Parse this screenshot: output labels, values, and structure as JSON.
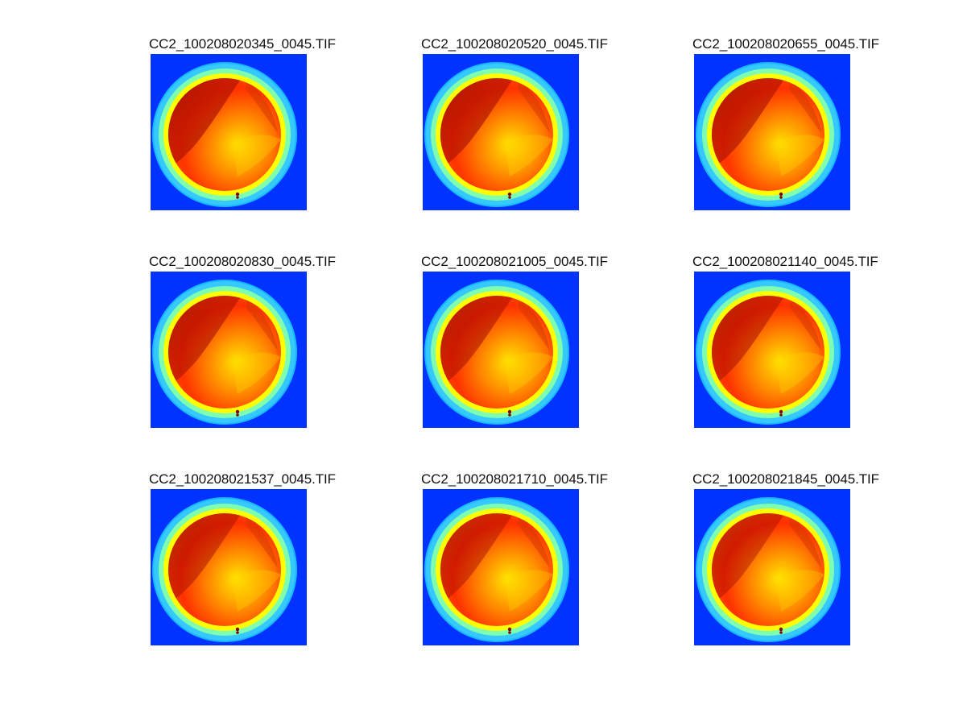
{
  "figure": {
    "panels": [
      {
        "title": "CC2_100208020345_0045.TIF",
        "icon": "sky-camera-thermal-image",
        "shadow_strength": 1.0
      },
      {
        "title": "CC2_100208020520_0045.TIF",
        "icon": "sky-camera-thermal-image",
        "shadow_strength": 0.95
      },
      {
        "title": "CC2_100208020655_0045.TIF",
        "icon": "sky-camera-thermal-image",
        "shadow_strength": 0.9
      },
      {
        "title": "CC2_100208020830_0045.TIF",
        "icon": "sky-camera-thermal-image",
        "shadow_strength": 0.85
      },
      {
        "title": "CC2_100208021005_0045.TIF",
        "icon": "sky-camera-thermal-image",
        "shadow_strength": 0.8
      },
      {
        "title": "CC2_100208021140_0045.TIF",
        "icon": "sky-camera-thermal-image",
        "shadow_strength": 0.75
      },
      {
        "title": "CC2_100208021537_0045.TIF",
        "icon": "sky-camera-thermal-image",
        "shadow_strength": 0.7
      },
      {
        "title": "CC2_100208021710_0045.TIF",
        "icon": "sky-camera-thermal-image",
        "shadow_strength": 0.65
      },
      {
        "title": "CC2_100208021845_0045.TIF",
        "icon": "sky-camera-thermal-image",
        "shadow_strength": 0.6
      }
    ],
    "colors": {
      "background": "#0033ff",
      "outer_ring": "#35c9ff",
      "mid_ring": "#7fffb0",
      "inner_ring": "#ffff00",
      "orange": "#ff8c00",
      "red": "#ff2a00",
      "dark_red": "#800000"
    }
  }
}
